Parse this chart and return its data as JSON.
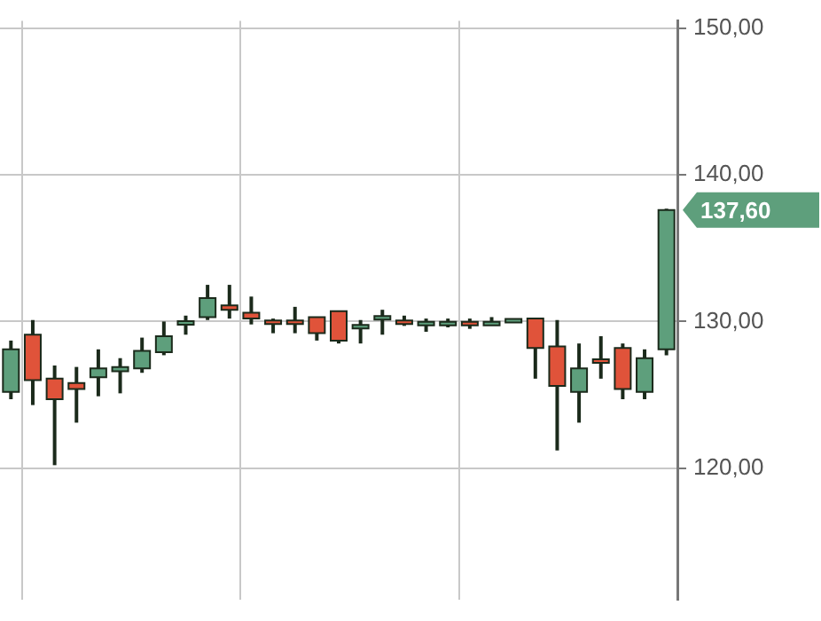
{
  "chart_data": {
    "type": "candlestick",
    "categories": [
      null,
      null,
      null,
      null,
      null,
      null,
      null,
      null,
      null,
      null,
      null,
      null,
      null,
      null,
      null,
      null,
      null,
      null,
      null,
      null,
      null,
      null,
      null,
      null,
      null,
      null,
      null,
      null,
      null,
      null,
      null
    ],
    "ohlc": [
      [
        125.2,
        128.7,
        124.7,
        128.1
      ],
      [
        129.1,
        130.1,
        124.3,
        126.0
      ],
      [
        126.1,
        127.0,
        120.2,
        124.7
      ],
      [
        125.8,
        126.9,
        123.1,
        125.4
      ],
      [
        126.2,
        128.1,
        124.9,
        126.8
      ],
      [
        126.6,
        127.5,
        125.1,
        126.9
      ],
      [
        126.8,
        128.9,
        126.5,
        128.0
      ],
      [
        127.9,
        130.0,
        127.7,
        129.0
      ],
      [
        129.8,
        130.4,
        129.1,
        130.0
      ],
      [
        130.3,
        132.5,
        130.1,
        131.6
      ],
      [
        131.1,
        132.5,
        130.2,
        130.8
      ],
      [
        130.6,
        131.7,
        129.8,
        130.2
      ],
      [
        130.0,
        130.2,
        129.2,
        129.9
      ],
      [
        130.0,
        131.0,
        129.2,
        129.9
      ],
      [
        130.3,
        130.3,
        128.7,
        129.2
      ],
      [
        130.7,
        130.7,
        128.5,
        128.7
      ],
      [
        129.6,
        130.1,
        128.5,
        129.7
      ],
      [
        130.2,
        130.8,
        129.1,
        130.3
      ],
      [
        130.0,
        130.4,
        129.7,
        129.9
      ],
      [
        129.8,
        130.2,
        129.3,
        129.9
      ],
      [
        129.8,
        130.2,
        129.6,
        129.9
      ],
      [
        129.9,
        130.2,
        129.5,
        129.8
      ],
      [
        129.8,
        130.3,
        129.8,
        129.9
      ],
      [
        130.0,
        130.1,
        130.0,
        130.1
      ],
      [
        130.2,
        130.2,
        126.1,
        128.2
      ],
      [
        128.3,
        130.1,
        121.2,
        125.6
      ],
      [
        125.2,
        128.5,
        123.1,
        126.8
      ],
      [
        127.4,
        129.0,
        126.1,
        127.2
      ],
      [
        128.2,
        128.5,
        124.7,
        125.4
      ],
      [
        125.2,
        128.1,
        124.7,
        127.5
      ],
      [
        128.1,
        137.7,
        127.7,
        137.6
      ]
    ],
    "colors": [
      "#5e9f7c",
      "#e0533a",
      "#e0533a",
      "#e0533a",
      "#5e9f7c",
      "#5e9f7c",
      "#5e9f7c",
      "#5e9f7c",
      "#5e9f7c",
      "#5e9f7c",
      "#e0533a",
      "#e0533a",
      "#e0533a",
      "#e0533a",
      "#e0533a",
      "#e0533a",
      "#5e9f7c",
      "#5e9f7c",
      "#e0533a",
      "#5e9f7c",
      "#5e9f7c",
      "#e0533a",
      "#5e9f7c",
      "#5e9f7c",
      "#e0533a",
      "#e0533a",
      "#5e9f7c",
      "#e0533a",
      "#e0533a",
      "#5e9f7c",
      "#5e9f7c"
    ],
    "ylim": [
      111,
      150.5
    ],
    "yticks": [
      {
        "value": 120,
        "label": "120,00"
      },
      {
        "value": 130,
        "label": "130,00"
      },
      {
        "value": 140,
        "label": "140,00"
      },
      {
        "value": 150,
        "label": "150,00"
      }
    ],
    "grid": true,
    "annotations": [
      "137,60"
    ]
  }
}
